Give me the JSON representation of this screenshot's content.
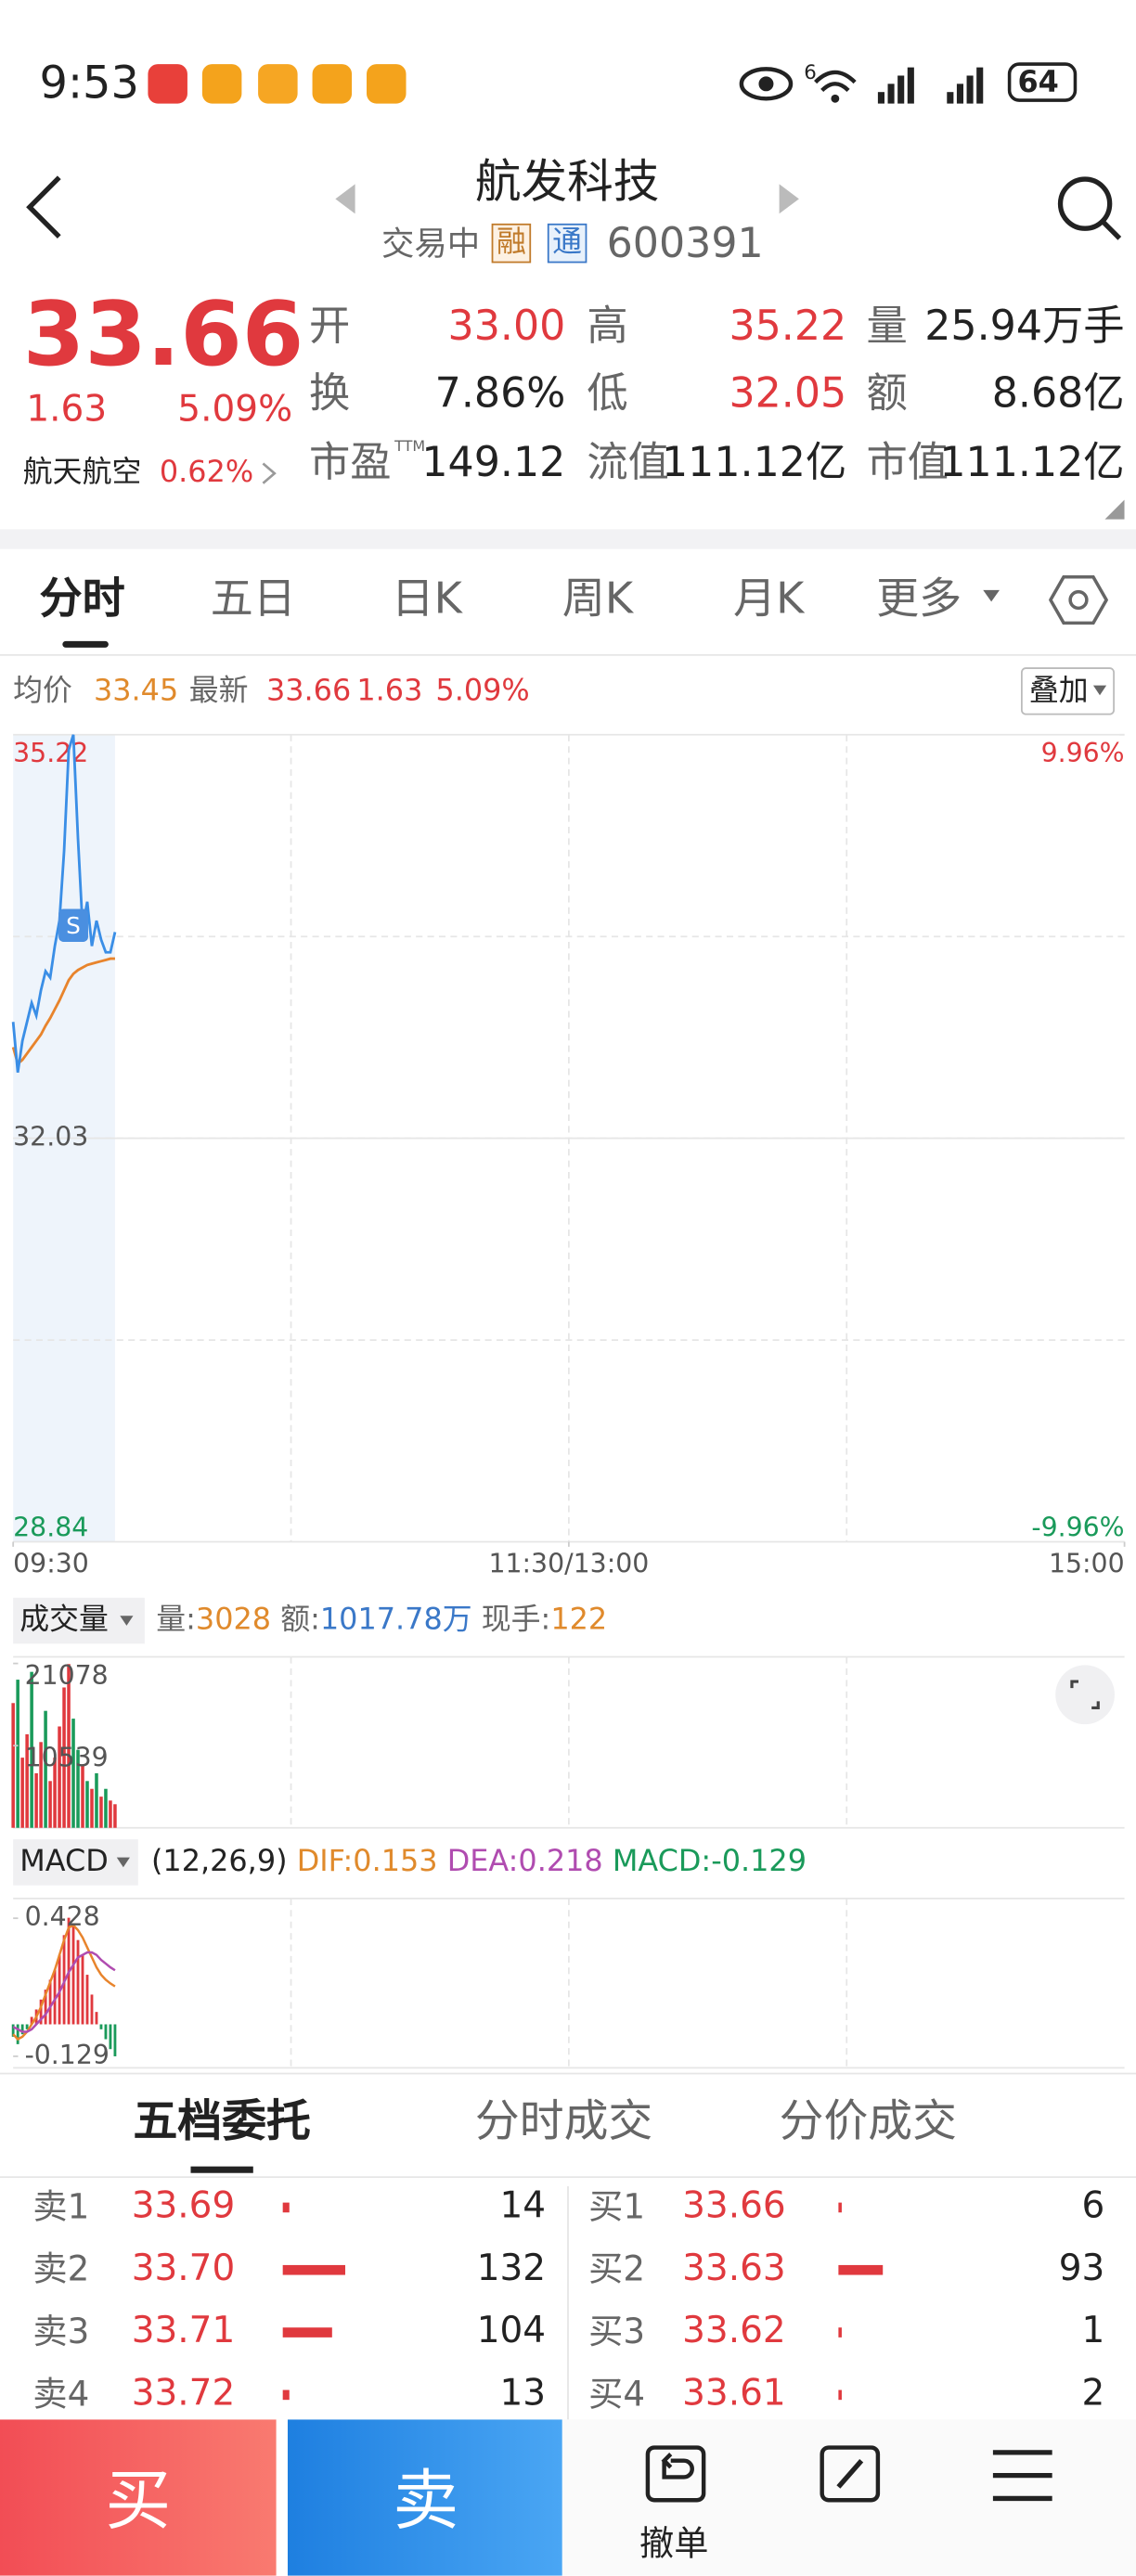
{
  "status_bar": {
    "time": "9:53",
    "network": "6",
    "battery": "64"
  },
  "header": {
    "title": "航发科技",
    "status": "交易中",
    "tags": [
      "融",
      "通"
    ],
    "code": "600391"
  },
  "quote": {
    "price": "33.66",
    "change": "1.63",
    "change_pct": "5.09%",
    "sector": {
      "name": "航天航空",
      "change_pct": "0.62%"
    },
    "stats": [
      {
        "label": "开",
        "value": "33.00"
      },
      {
        "label": "高",
        "value": "35.22"
      },
      {
        "label": "量",
        "value": "25.94万手"
      },
      {
        "label": "换",
        "value": "7.86%"
      },
      {
        "label": "低",
        "value": "32.05"
      },
      {
        "label": "额",
        "value": "8.68亿"
      },
      {
        "label": "市盈",
        "sup": "TTM",
        "value": "149.12"
      },
      {
        "label": "流值",
        "value": "111.12亿"
      },
      {
        "label": "市值",
        "value": "111.12亿"
      }
    ]
  },
  "tabs": [
    "分时",
    "五日",
    "日K",
    "周K",
    "月K",
    "更多"
  ],
  "intraday": {
    "avg_label": "均价",
    "avg": "33.45",
    "latest_label": "最新",
    "latest": "33.66",
    "change": "1.63",
    "change_pct": "5.09%",
    "overlay": "叠加",
    "chart": {
      "ylim": [
        28.84,
        35.22
      ],
      "yticks": [
        35.22,
        32.03,
        28.84
      ],
      "y2lim": [
        -9.96,
        9.96
      ],
      "y2ticks": [
        {
          "value": 9.96,
          "label": "9.96%"
        },
        {
          "value": -9.96,
          "label": "-9.96%"
        }
      ],
      "xlim": [
        0,
        240
      ],
      "xticks": [
        {
          "value": 0,
          "label": "09:30"
        },
        {
          "value": 120,
          "label": "11:30/13:00"
        },
        {
          "value": 240,
          "label": "15:00"
        }
      ],
      "signal": "S",
      "price_color": "#3a8ee6",
      "avg_color": "#e8842c",
      "price": [
        32.95,
        32.55,
        32.8,
        32.95,
        33.1,
        33.0,
        33.2,
        33.35,
        33.3,
        33.55,
        33.75,
        34.3,
        35.1,
        35.22,
        34.4,
        33.7,
        33.9,
        33.55,
        33.75,
        33.6,
        33.5,
        33.5,
        33.66
      ],
      "avg": [
        32.75,
        32.62,
        32.65,
        32.7,
        32.75,
        32.8,
        32.85,
        32.92,
        32.98,
        33.05,
        33.12,
        33.2,
        33.28,
        33.33,
        33.36,
        33.38,
        33.4,
        33.41,
        33.42,
        33.43,
        33.44,
        33.45,
        33.45
      ]
    }
  },
  "volume": {
    "title": "成交量",
    "vol_label": "量:",
    "vol": "3028",
    "amount_label": "额:",
    "amount": "1017.78万",
    "hand_label": "现手:",
    "hand": "122",
    "ylim": [
      0,
      21078
    ],
    "yticks": [
      21078,
      10539
    ],
    "values": [
      16000,
      19000,
      9000,
      12000,
      20000,
      7000,
      11000,
      15000,
      6000,
      9000,
      13000,
      18000,
      21000,
      14000,
      10000,
      8000,
      6000,
      5000,
      7000,
      4000,
      5000,
      3500,
      3028
    ],
    "colors": [
      "#e0393e",
      "#1a9a5a",
      "#e0393e",
      "#e0393e",
      "#1a9a5a",
      "#e0393e",
      "#e0393e",
      "#1a9a5a",
      "#e0393e",
      "#e0393e",
      "#e0393e",
      "#e0393e",
      "#e0393e",
      "#1a9a5a",
      "#1a9a5a",
      "#e0393e",
      "#1a9a5a",
      "#e0393e",
      "#1a9a5a",
      "#e0393e",
      "#1a9a5a",
      "#e0393e",
      "#e0393e"
    ]
  },
  "macd": {
    "title": "MACD",
    "params": "(12,26,9)",
    "dif_label": "DIF:",
    "dif": "0.153",
    "dea_label": "DEA:",
    "dea": "0.218",
    "macd_label": "MACD:",
    "macd": "-0.129",
    "ylim": [
      -0.129,
      0.428
    ],
    "yticks": [
      0.428,
      -0.129
    ],
    "bars": [
      -0.05,
      -0.08,
      -0.04,
      -0.02,
      0.03,
      0.06,
      0.1,
      0.14,
      0.18,
      0.22,
      0.28,
      0.36,
      0.43,
      0.4,
      0.34,
      0.28,
      0.2,
      0.12,
      0.05,
      -0.02,
      -0.06,
      -0.1,
      -0.129
    ],
    "dif_line": [
      -0.04,
      -0.06,
      -0.05,
      -0.03,
      0,
      0.03,
      0.07,
      0.12,
      0.17,
      0.22,
      0.28,
      0.34,
      0.39,
      0.4,
      0.38,
      0.35,
      0.31,
      0.27,
      0.23,
      0.2,
      0.18,
      0.165,
      0.153
    ],
    "dea_line": [
      -0.01,
      -0.02,
      -0.03,
      -0.03,
      -0.02,
      0,
      0.02,
      0.04,
      0.07,
      0.1,
      0.13,
      0.17,
      0.21,
      0.24,
      0.27,
      0.28,
      0.29,
      0.29,
      0.28,
      0.26,
      0.245,
      0.23,
      0.218
    ]
  },
  "order_book": {
    "tabs": [
      "五档委托",
      "分时成交",
      "分价成交"
    ],
    "sell": [
      {
        "label": "卖1",
        "price": "33.69",
        "qty": 14
      },
      {
        "label": "卖2",
        "price": "33.70",
        "qty": 132
      },
      {
        "label": "卖3",
        "price": "33.71",
        "qty": 104
      },
      {
        "label": "卖4",
        "price": "33.72",
        "qty": 13
      }
    ],
    "buy": [
      {
        "label": "买1",
        "price": "33.66",
        "qty": 6
      },
      {
        "label": "买2",
        "price": "33.63",
        "qty": 93
      },
      {
        "label": "买3",
        "price": "33.62",
        "qty": 1
      },
      {
        "label": "买4",
        "price": "33.61",
        "qty": 2
      }
    ]
  },
  "bottom_bar": {
    "buy": "买",
    "sell": "卖",
    "cancel": "撤单"
  }
}
